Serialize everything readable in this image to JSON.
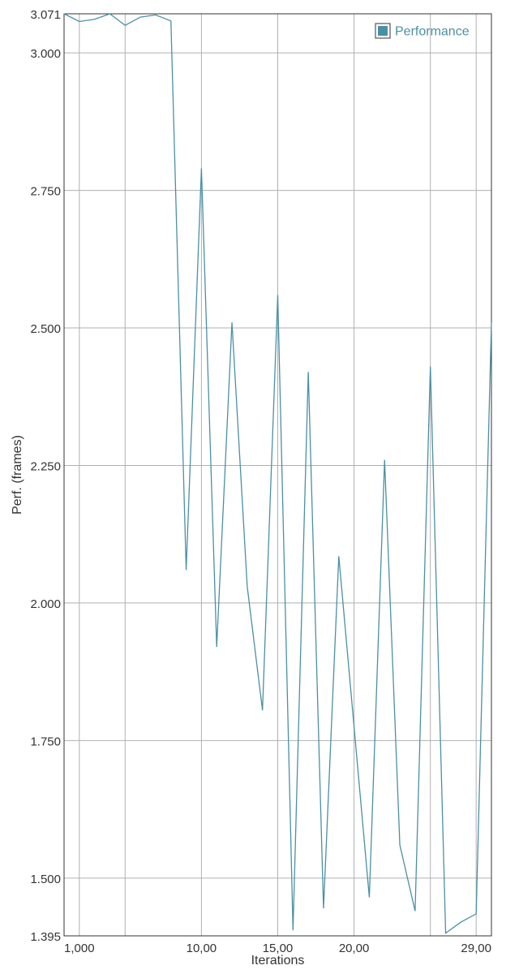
{
  "chart_data": {
    "type": "line",
    "title": "",
    "xlabel": "Iterations",
    "ylabel": "Perf. (frames)",
    "xlim": [
      0,
      28
    ],
    "ylim": [
      1.395,
      3.071
    ],
    "y_ticks": [
      3.071,
      3.0,
      2.75,
      2.5,
      2.25,
      2.0,
      1.75,
      1.5,
      1.395
    ],
    "y_tick_labels": [
      "3.071",
      "3.000",
      "2.750",
      "2.500",
      "2.250",
      "2.000",
      "1.750",
      "1.500",
      "1.395"
    ],
    "x_tick_labels": [
      {
        "x": 1,
        "label": "1,000"
      },
      {
        "x": 9,
        "label": "10,00"
      },
      {
        "x": 14,
        "label": "15,00"
      },
      {
        "x": 19,
        "label": "20,00"
      },
      {
        "x": 27,
        "label": "29,00"
      }
    ],
    "x_grid": [
      1,
      4,
      9,
      14,
      19,
      24,
      27
    ],
    "grid": true,
    "legend_position": "top-right",
    "series": [
      {
        "name": "Performance",
        "color": "#4a90a4",
        "x": [
          0,
          1,
          2,
          3,
          4,
          5,
          6,
          7,
          8,
          9,
          10,
          11,
          12,
          13,
          14,
          15,
          16,
          17,
          18,
          19,
          20,
          21,
          22,
          23,
          24,
          25,
          26,
          27,
          28
        ],
        "y": [
          3.071,
          3.057,
          3.061,
          3.071,
          3.05,
          3.065,
          3.069,
          3.058,
          2.06,
          2.79,
          1.92,
          2.51,
          2.03,
          1.805,
          2.56,
          1.405,
          2.42,
          1.445,
          2.085,
          1.775,
          1.465,
          2.26,
          1.56,
          1.44,
          2.43,
          1.4,
          1.42,
          1.435,
          2.51
        ]
      }
    ]
  }
}
